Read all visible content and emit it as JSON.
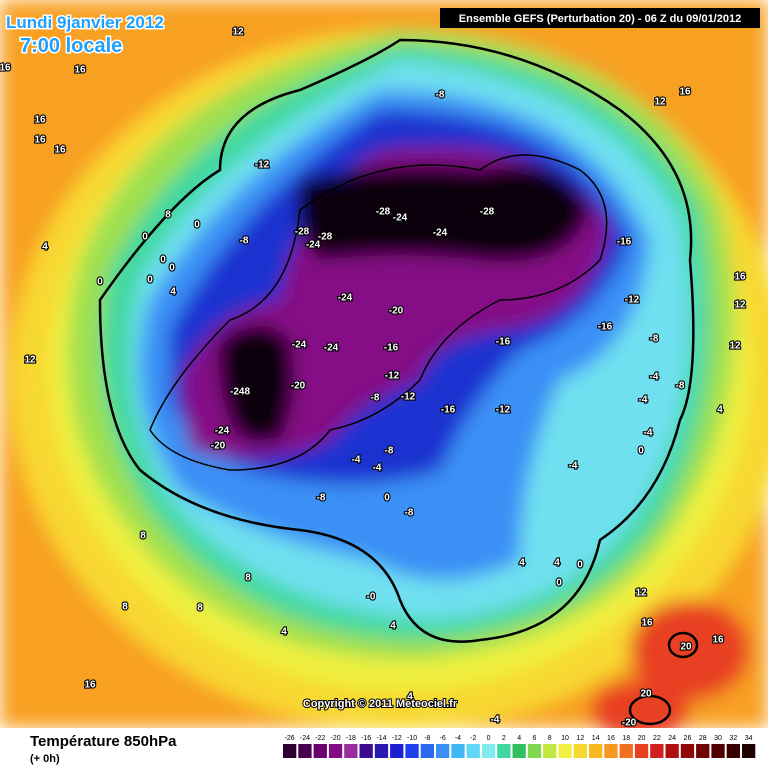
{
  "header": {
    "date": "Lundi 9janvier 2012",
    "time": "7:00 locale",
    "run": "Ensemble GEFS (Perturbation 20)  -  06 Z du 09/01/2012"
  },
  "copyright": "Copyright © 2011 Meteociel.fr",
  "footer": {
    "title": "Température 850hPa",
    "lead": "(+ 0h)"
  },
  "legend": {
    "ticks": [
      -26,
      -24,
      -22,
      -20,
      -18,
      -16,
      -14,
      -12,
      -10,
      -8,
      -6,
      -4,
      -2,
      0,
      2,
      4,
      6,
      8,
      10,
      12,
      14,
      16,
      18,
      20,
      22,
      24,
      26,
      28,
      30,
      32,
      34
    ],
    "colors": [
      "#2b0030",
      "#4a0050",
      "#6a0070",
      "#850a85",
      "#9b2ba0",
      "#3a0a90",
      "#2a1ab0",
      "#1a20d0",
      "#1f3ff0",
      "#2a6af0",
      "#3a90f5",
      "#40b8f5",
      "#60d8f5",
      "#80ecf0",
      "#40d8a0",
      "#30c060",
      "#80d850",
      "#c0e840",
      "#f0f040",
      "#f8d830",
      "#f8b820",
      "#f89820",
      "#f07020",
      "#e84020",
      "#d02020",
      "#b01010",
      "#900808",
      "#700505",
      "#500000",
      "#380000",
      "#200000"
    ]
  },
  "map": {
    "labels": [
      "12",
      "16",
      "16",
      "16",
      "16",
      "16",
      "12",
      "16",
      "-8",
      "-12",
      "-28",
      "-24",
      "-28",
      "-24",
      "-28",
      "-24",
      "-28",
      "-8",
      "0",
      "8",
      "0",
      "0",
      "0",
      "4",
      "0",
      "0",
      "4",
      "-16",
      "-24",
      "-20",
      "-12",
      "-16",
      "16",
      "12",
      "-24",
      "-24",
      "-16",
      "-16",
      "-8",
      "12",
      "12",
      "-20",
      "-248",
      "-12",
      "-8",
      "-12",
      "-16",
      "-12",
      "-4",
      "-8",
      "-4",
      "4",
      "-24",
      "-20",
      "-4",
      "0",
      "-4",
      "-4",
      "-8",
      "-4",
      "-8",
      "0",
      "-8",
      "8",
      "8",
      "4",
      "0",
      "0",
      "4",
      "-0",
      "12",
      "4",
      "4",
      "16",
      "20",
      "16",
      "16",
      "4",
      "-4",
      "20",
      "-20",
      "8",
      "8"
    ]
  }
}
